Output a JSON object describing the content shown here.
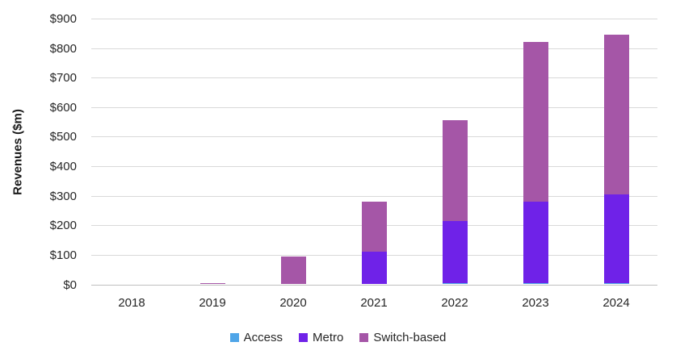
{
  "chart_data": {
    "type": "bar",
    "stacked": true,
    "title": "",
    "ylabel": "Revenues ($m)",
    "xlabel": "",
    "categories": [
      "2018",
      "2019",
      "2020",
      "2021",
      "2022",
      "2023",
      "2024"
    ],
    "series": [
      {
        "name": "Access",
        "color": "#4fa5e8",
        "values": [
          0,
          0,
          0,
          0,
          5,
          5,
          5
        ]
      },
      {
        "name": "Metro",
        "color": "#6f22e8",
        "values": [
          0,
          0,
          0,
          110,
          210,
          275,
          300
        ]
      },
      {
        "name": "Switch-based",
        "color": "#a556a7",
        "values": [
          0,
          5,
          95,
          170,
          340,
          540,
          540
        ]
      }
    ],
    "ylim": [
      0,
      900
    ],
    "ytick_step": 100,
    "ytick_labels": [
      "$0",
      "$100",
      "$200",
      "$300",
      "$400",
      "$500",
      "$600",
      "$700",
      "$800",
      "$900"
    ],
    "grid": true,
    "legend_position": "bottom"
  },
  "colors": {
    "gridline": "#d9d9d9",
    "zero_line": "#bfbfbf",
    "tick_text": "#262626"
  }
}
